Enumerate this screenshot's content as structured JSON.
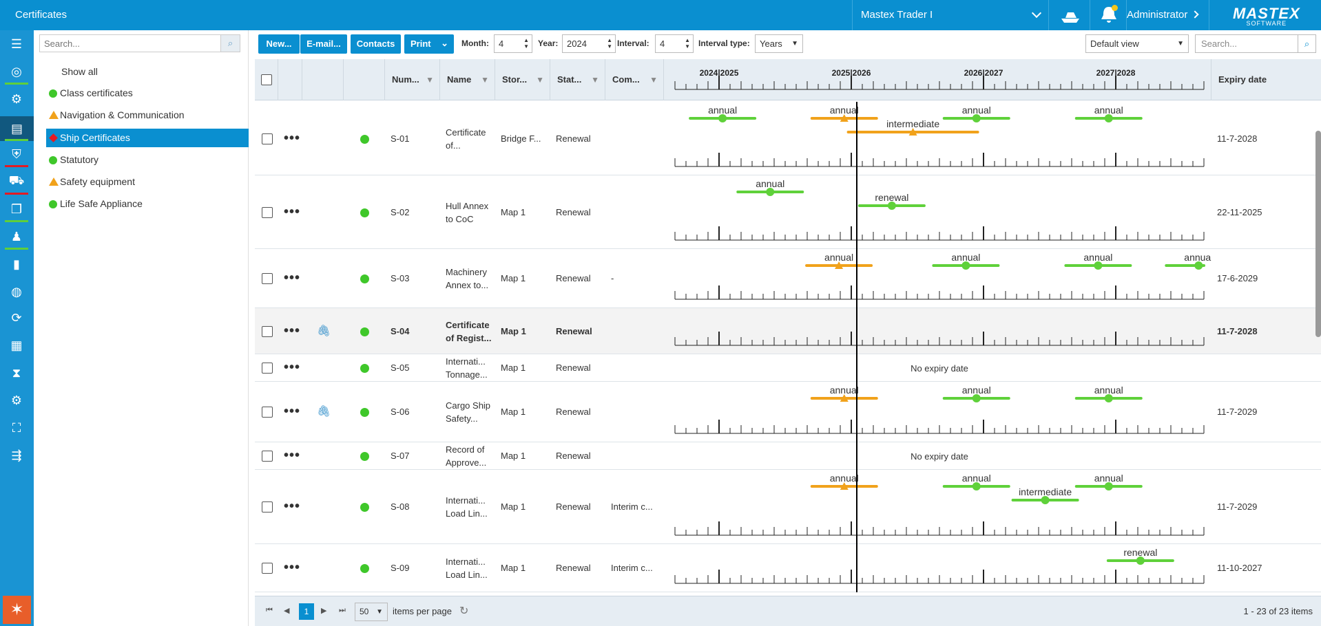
{
  "app": {
    "title": "Certificates"
  },
  "header": {
    "vessel": "Mastex Trader I",
    "user": "Administrator",
    "logo_main": "MASTEX",
    "logo_sub": "SOFTWARE"
  },
  "rail_icons": [
    "menu-icon",
    "target-icon",
    "settings-box-icon",
    "documents-icon",
    "shield-icon",
    "cart-icon",
    "files-icon",
    "crew-icon",
    "stopwatch-icon",
    "globe-icon",
    "sync-icon",
    "calendar-icon",
    "hourglass-icon",
    "gear-icon",
    "fullscreen-icon",
    "sort-icon"
  ],
  "sidebar": {
    "search_placeholder": "Search...",
    "items": [
      {
        "label": "Show all",
        "status": "none"
      },
      {
        "label": "Class certificates",
        "status": "green"
      },
      {
        "label": "Navigation & Communication",
        "status": "orange"
      },
      {
        "label": "Ship Certificates",
        "status": "red",
        "selected": true
      },
      {
        "label": "Statutory",
        "status": "green"
      },
      {
        "label": "Safety equipment",
        "status": "orange"
      },
      {
        "label": "Life Safe Appliance",
        "status": "green"
      }
    ]
  },
  "toolbar": {
    "new": "New...",
    "email": "E-mail...",
    "contacts": "Contacts",
    "print": "Print",
    "month_label": "Month:",
    "month": "4",
    "year_label": "Year:",
    "year": "2024",
    "interval_label": "Interval:",
    "interval": "4",
    "interval_type_label": "Interval type:",
    "interval_type": "Years",
    "view": "Default view",
    "search_placeholder": "Search..."
  },
  "columns": {
    "number": "Num...",
    "name": "Name",
    "storage": "Stor...",
    "status": "Stat...",
    "comment": "Com...",
    "expiry": "Expiry date"
  },
  "timeline": {
    "years": [
      "2024|2025",
      "2025|2026",
      "2026|2027",
      "2027|2028"
    ]
  },
  "rows": [
    {
      "number": "S-01",
      "name1": "Certificate",
      "name2": "of...",
      "storage": "Bridge F...",
      "status": "Renewal",
      "comment": "",
      "expiry": "11-7-2028",
      "attachment": false,
      "bold": false,
      "events": [
        {
          "label": "annual",
          "color": "#5fd13a",
          "x": 0.09,
          "lane": 0
        },
        {
          "label": "annual",
          "color": "#f1a21b",
          "x": 0.32,
          "lane": 0,
          "tri": true
        },
        {
          "label": "annual",
          "color": "#5fd13a",
          "x": 0.57,
          "lane": 0
        },
        {
          "label": "annual",
          "color": "#5fd13a",
          "x": 0.82,
          "lane": 0
        },
        {
          "label": "intermediate",
          "color": "#f1a21b",
          "x": 0.45,
          "lane": 1,
          "tri": true,
          "wide": true
        }
      ]
    },
    {
      "number": "S-02",
      "name1": "Hull Annex",
      "name2": "to CoC",
      "storage": "Map 1",
      "status": "Renewal",
      "comment": "",
      "expiry": "22-11-2025",
      "attachment": false,
      "bold": false,
      "events": [
        {
          "label": "annual",
          "color": "#5fd13a",
          "x": 0.18,
          "lane": 0
        },
        {
          "label": "renewal",
          "color": "#5fd13a",
          "x": 0.41,
          "lane": 1
        }
      ]
    },
    {
      "number": "S-03",
      "name1": "Machinery",
      "name2": "Annex to...",
      "storage": "Map 1",
      "status": "Renewal",
      "comment": "-",
      "expiry": "17-6-2029",
      "attachment": false,
      "bold": false,
      "events": [
        {
          "label": "annual",
          "color": "#f1a21b",
          "x": 0.31,
          "lane": 0,
          "tri": true
        },
        {
          "label": "annual",
          "color": "#5fd13a",
          "x": 0.55,
          "lane": 0
        },
        {
          "label": "annual",
          "color": "#5fd13a",
          "x": 0.8,
          "lane": 0
        },
        {
          "label": "annual",
          "color": "#5fd13a",
          "x": 0.99,
          "lane": 0
        }
      ]
    },
    {
      "number": "S-04",
      "name1": "Certificate",
      "name2": "of Regist...",
      "storage": "Map 1",
      "status": "Renewal",
      "comment": "",
      "expiry": "11-7-2028",
      "attachment": true,
      "bold": true,
      "events": []
    },
    {
      "number": "S-05",
      "name1": "Internati...",
      "name2": "Tonnage...",
      "storage": "Map 1",
      "status": "Renewal",
      "comment": "",
      "expiry": "",
      "attachment": false,
      "bold": false,
      "note": "No expiry date",
      "events": []
    },
    {
      "number": "S-06",
      "name1": "Cargo Ship",
      "name2": "Safety...",
      "storage": "Map 1",
      "status": "Renewal",
      "comment": "",
      "expiry": "11-7-2029",
      "attachment": true,
      "bold": false,
      "events": [
        {
          "label": "annual",
          "color": "#f1a21b",
          "x": 0.32,
          "lane": 0,
          "tri": true
        },
        {
          "label": "annual",
          "color": "#5fd13a",
          "x": 0.57,
          "lane": 0
        },
        {
          "label": "annual",
          "color": "#5fd13a",
          "x": 0.82,
          "lane": 0
        }
      ]
    },
    {
      "number": "S-07",
      "name1": "Record of",
      "name2": "Approve...",
      "storage": "Map 1",
      "status": "Renewal",
      "comment": "",
      "expiry": "",
      "attachment": false,
      "bold": false,
      "note": "No expiry date",
      "events": []
    },
    {
      "number": "S-08",
      "name1": "Internati...",
      "name2": "Load Lin...",
      "storage": "Map 1",
      "status": "Renewal",
      "comment": "Interim c...",
      "expiry": "11-7-2029",
      "attachment": false,
      "bold": false,
      "events": [
        {
          "label": "annual",
          "color": "#f1a21b",
          "x": 0.32,
          "lane": 0,
          "tri": true
        },
        {
          "label": "annual",
          "color": "#5fd13a",
          "x": 0.57,
          "lane": 0
        },
        {
          "label": "annual",
          "color": "#5fd13a",
          "x": 0.82,
          "lane": 0
        },
        {
          "label": "intermediate",
          "color": "#5fd13a",
          "x": 0.7,
          "lane": 1
        }
      ]
    },
    {
      "number": "S-09",
      "name1": "Internati...",
      "name2": "Load Lin...",
      "storage": "Map 1",
      "status": "Renewal",
      "comment": "Interim c...",
      "expiry": "11-10-2027",
      "attachment": false,
      "bold": false,
      "events": [
        {
          "label": "renewal",
          "color": "#5fd13a",
          "x": 0.88,
          "lane": 0
        }
      ]
    }
  ],
  "pager": {
    "page": "1",
    "page_size": "50",
    "items_per_page": "items per page",
    "summary": "1 - 23 of 23 items"
  }
}
